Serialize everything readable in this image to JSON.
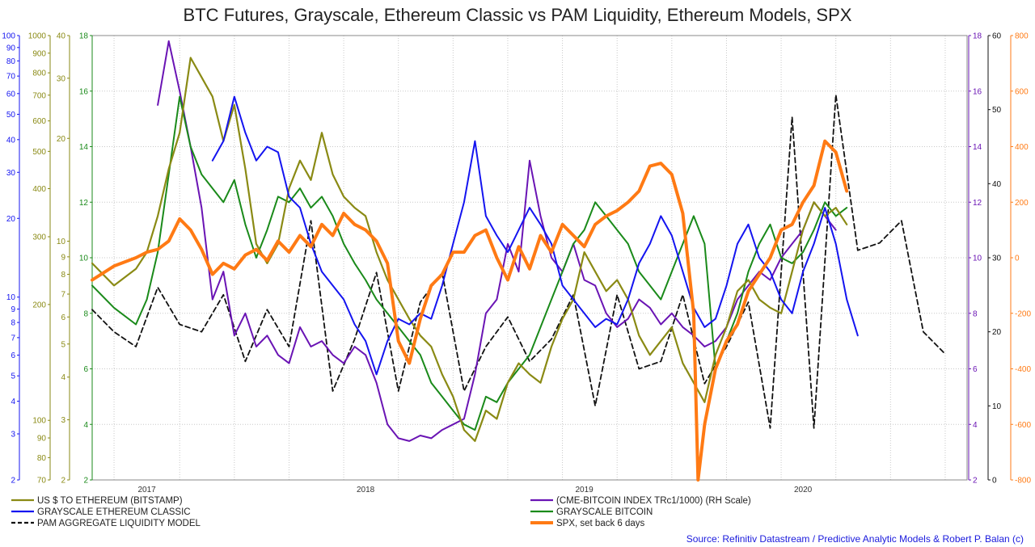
{
  "title": "BTC Futures, Grayscale, Ethereum Classic vs PAM Liquidity, Ethereum Models, SPX",
  "source": "Source: Refinitiv Datastream / Predictive Analytic Models & Robert P. Balan (c)",
  "colors": {
    "eth_usd": "#8a8a14",
    "gs_etc": "#1414f0",
    "pam": "#111111",
    "cme_btc": "#6a14b4",
    "gs_btc": "#1a8a1a",
    "spx": "#ff7a14",
    "grid": "#c8c8c8",
    "source": "#1a1adc"
  },
  "axes": {
    "blue_left": {
      "label_ticks": [
        "100",
        "90",
        "80",
        "70",
        "60",
        "50",
        "40",
        "30",
        "20",
        "10",
        "9",
        "8",
        "7",
        "6",
        "5",
        "4",
        "3",
        "2"
      ],
      "color": "#1414f0",
      "scale": "log",
      "range": [
        2,
        100
      ]
    },
    "olive_left_big": {
      "label_ticks": [
        "1000",
        "900",
        "800",
        "700",
        "600",
        "500",
        "400",
        "300",
        "200",
        "100",
        "90",
        "80",
        "70"
      ],
      "color": "#8a8a14",
      "scale": "log",
      "range": [
        70,
        1000
      ]
    },
    "olive_left_small": {
      "label_ticks": [
        "40",
        "30",
        "20",
        "10",
        "9",
        "8",
        "7",
        "6",
        "5",
        "4",
        "3",
        "2"
      ],
      "color": "#8a8a14",
      "scale": "log",
      "range": [
        2,
        40
      ]
    },
    "green_left": {
      "label_ticks": [
        "18",
        "16",
        "14",
        "12",
        "10",
        "8",
        "6",
        "4",
        "2"
      ],
      "color": "#1a8a1a",
      "scale": "linear",
      "range": [
        2,
        18
      ]
    },
    "purple_right": {
      "label_ticks": [
        "18",
        "16",
        "14",
        "12",
        "10",
        "8",
        "6",
        "4",
        "2"
      ],
      "color": "#6a14b4",
      "scale": "linear",
      "range": [
        2,
        18
      ]
    },
    "black_right": {
      "label_ticks": [
        "60",
        "50",
        "40",
        "30",
        "20",
        "10",
        "0"
      ],
      "color": "#111111",
      "scale": "linear",
      "range": [
        0,
        60
      ]
    },
    "orange_right": {
      "label_ticks": [
        "800",
        "600",
        "400",
        "200",
        "0",
        "-200",
        "-400",
        "-600",
        "-800"
      ],
      "color": "#ff7a14",
      "scale": "linear",
      "range": [
        -800,
        800
      ]
    }
  },
  "x_ticks": [
    "2017",
    "2018",
    "2019",
    "2020"
  ],
  "legend": [
    {
      "label": "US $ TO ETHEREUM (BITSTAMP)",
      "series": "eth_usd",
      "dashed": false
    },
    {
      "label": "GRAYSCALE ETHEREUM CLASSIC",
      "series": "gs_etc",
      "dashed": false
    },
    {
      "label": "PAM AGGREGATE LIQUIDITY MODEL",
      "series": "pam",
      "dashed": true
    },
    {
      "label": "(CME-BITCOIN INDEX TRc1/1000) (RH Scale)",
      "series": "cme_btc",
      "dashed": false
    },
    {
      "label": "GRAYSCALE BITCOIN",
      "series": "gs_btc",
      "dashed": false
    },
    {
      "label": "SPX, set back 6 days",
      "series": "spx",
      "dashed": false
    }
  ],
  "chart_data": {
    "type": "line",
    "title": "BTC Futures, Grayscale, Ethereum Classic vs PAM Liquidity, Ethereum Models, SPX",
    "x_range": [
      2016.75,
      2020.75
    ],
    "x_ticks": [
      2017,
      2018,
      2019,
      2020
    ],
    "grid": true,
    "series": [
      {
        "name": "US $ TO ETHEREUM (BITSTAMP)",
        "key": "eth_usd",
        "axis": "green_left scale (2-18)",
        "x": [
          2016.75,
          2016.85,
          2016.95,
          2017.0,
          2017.05,
          2017.1,
          2017.15,
          2017.2,
          2017.25,
          2017.3,
          2017.35,
          2017.4,
          2017.45,
          2017.5,
          2017.55,
          2017.6,
          2017.65,
          2017.7,
          2017.75,
          2017.8,
          2017.85,
          2017.9,
          2017.95,
          2018.0,
          2018.05,
          2018.1,
          2018.15,
          2018.2,
          2018.25,
          2018.3,
          2018.35,
          2018.4,
          2018.45,
          2018.5,
          2018.55,
          2018.6,
          2018.65,
          2018.7,
          2018.75,
          2018.8,
          2018.85,
          2018.9,
          2018.95,
          2019.0,
          2019.05,
          2019.1,
          2019.15,
          2019.2,
          2019.25,
          2019.3,
          2019.35,
          2019.4,
          2019.45,
          2019.5,
          2019.55,
          2019.6,
          2019.65,
          2019.7,
          2019.75,
          2019.8,
          2019.85,
          2019.9,
          2019.95,
          2020.0,
          2020.05,
          2020.1,
          2020.15,
          2020.2
        ],
        "values": [
          9.8,
          9.0,
          9.6,
          10.2,
          11.5,
          13.2,
          14.5,
          17.2,
          16.5,
          15.8,
          14.2,
          15.5,
          13.2,
          10.5,
          9.8,
          10.5,
          12.5,
          13.5,
          12.8,
          14.5,
          13.0,
          12.2,
          11.8,
          11.5,
          10.2,
          9.2,
          8.5,
          7.8,
          7.2,
          6.8,
          5.8,
          5.0,
          3.8,
          3.4,
          4.5,
          4.2,
          5.5,
          6.2,
          5.8,
          5.5,
          6.8,
          7.8,
          8.5,
          10.2,
          9.5,
          8.8,
          9.2,
          8.5,
          7.2,
          6.5,
          7.0,
          7.5,
          6.2,
          5.5,
          4.8,
          6.5,
          7.5,
          8.8,
          9.2,
          8.5,
          8.2,
          8.0,
          9.5,
          11.0,
          12.0,
          11.5,
          11.8,
          11.2
        ]
      },
      {
        "name": "GRAYSCALE ETHEREUM CLASSIC",
        "key": "gs_etc",
        "axis": "green_left scale (2-18)",
        "x": [
          2017.3,
          2017.35,
          2017.4,
          2017.45,
          2017.5,
          2017.55,
          2017.6,
          2017.65,
          2017.7,
          2017.75,
          2017.8,
          2017.85,
          2017.9,
          2017.95,
          2018.0,
          2018.05,
          2018.1,
          2018.15,
          2018.2,
          2018.25,
          2018.3,
          2018.35,
          2018.4,
          2018.45,
          2018.5,
          2018.55,
          2018.6,
          2018.65,
          2018.7,
          2018.75,
          2018.8,
          2018.85,
          2018.9,
          2018.95,
          2019.0,
          2019.05,
          2019.1,
          2019.15,
          2019.2,
          2019.25,
          2019.3,
          2019.35,
          2019.4,
          2019.45,
          2019.5,
          2019.55,
          2019.6,
          2019.65,
          2019.7,
          2019.75,
          2019.8,
          2019.85,
          2019.9,
          2019.95,
          2020.0,
          2020.05,
          2020.1,
          2020.15,
          2020.2,
          2020.25
        ],
        "values": [
          13.5,
          14.2,
          15.8,
          14.5,
          13.5,
          14.0,
          13.8,
          12.2,
          11.8,
          10.5,
          9.5,
          9.0,
          8.5,
          7.6,
          7.0,
          5.8,
          7.0,
          7.8,
          7.6,
          8.0,
          7.8,
          9.0,
          10.5,
          12.0,
          14.2,
          11.5,
          10.8,
          10.2,
          11.0,
          11.8,
          11.2,
          10.5,
          9.0,
          8.5,
          8.0,
          7.5,
          7.8,
          7.6,
          8.5,
          9.8,
          10.5,
          11.5,
          10.8,
          9.5,
          8.2,
          7.5,
          7.8,
          9.0,
          10.5,
          11.2,
          10.0,
          9.5,
          8.5,
          8.0,
          9.5,
          10.5,
          11.8,
          10.5,
          8.5,
          7.2
        ]
      },
      {
        "name": "PAM AGGREGATE LIQUIDITY MODEL",
        "key": "pam",
        "axis": "black_right scale (0-60)",
        "x": [
          2016.75,
          2016.85,
          2016.95,
          2017.05,
          2017.15,
          2017.25,
          2017.35,
          2017.45,
          2017.55,
          2017.65,
          2017.75,
          2017.85,
          2017.95,
          2018.05,
          2018.15,
          2018.25,
          2018.35,
          2018.45,
          2018.55,
          2018.65,
          2018.75,
          2018.85,
          2018.95,
          2019.05,
          2019.15,
          2019.25,
          2019.35,
          2019.45,
          2019.55,
          2019.65,
          2019.75,
          2019.85,
          2019.95,
          2020.05,
          2020.15,
          2020.25,
          2020.35,
          2020.45,
          2020.55,
          2020.65
        ],
        "values": [
          23,
          20,
          18,
          26,
          21,
          20,
          25,
          16,
          23,
          18,
          35,
          12,
          19,
          28,
          12,
          24,
          28,
          12,
          18,
          22,
          16,
          19,
          25,
          10,
          25,
          15,
          16,
          25,
          13,
          18,
          24,
          7,
          49,
          7,
          52,
          31,
          32,
          35,
          20,
          17
        ]
      },
      {
        "name": "(CME-BITCOIN INDEX TRc1/1000) (RH Scale)",
        "key": "cme_btc",
        "axis": "purple_right scale (2-18)",
        "x": [
          2017.05,
          2017.1,
          2017.15,
          2017.2,
          2017.25,
          2017.3,
          2017.35,
          2017.4,
          2017.45,
          2017.5,
          2017.55,
          2017.6,
          2017.65,
          2017.7,
          2017.75,
          2017.8,
          2017.85,
          2017.9,
          2017.95,
          2018.0,
          2018.05,
          2018.1,
          2018.15,
          2018.2,
          2018.25,
          2018.3,
          2018.35,
          2018.4,
          2018.45,
          2018.5,
          2018.55,
          2018.6,
          2018.65,
          2018.7,
          2018.75,
          2018.8,
          2018.85,
          2018.9,
          2018.95,
          2019.0,
          2019.05,
          2019.1,
          2019.15,
          2019.2,
          2019.25,
          2019.3,
          2019.35,
          2019.4,
          2019.45,
          2019.5,
          2019.55,
          2019.6,
          2019.65,
          2019.7,
          2019.75,
          2019.8,
          2019.85,
          2019.9,
          2019.95,
          2020.0,
          2020.05,
          2020.1,
          2020.15
        ],
        "values": [
          15.5,
          17.8,
          16.0,
          14.0,
          11.8,
          8.5,
          9.5,
          7.2,
          8.0,
          6.8,
          7.2,
          6.5,
          6.2,
          7.5,
          6.8,
          7.0,
          6.5,
          6.2,
          6.8,
          6.5,
          5.5,
          4.0,
          3.5,
          3.4,
          3.6,
          3.5,
          3.8,
          4.0,
          4.2,
          5.8,
          8.0,
          8.5,
          10.5,
          9.5,
          13.5,
          11.5,
          10.0,
          9.5,
          10.5,
          9.2,
          9.0,
          8.0,
          7.5,
          7.8,
          8.5,
          8.2,
          7.6,
          8.0,
          7.5,
          7.2,
          6.8,
          7.0,
          7.5,
          8.5,
          9.0,
          9.5,
          9.2,
          10.0,
          10.5,
          11.0,
          12.0,
          11.5,
          11.0
        ]
      },
      {
        "name": "GRAYSCALE BITCOIN",
        "key": "gs_btc",
        "axis": "green_left scale (2-18)",
        "x": [
          2016.75,
          2016.85,
          2016.95,
          2017.0,
          2017.05,
          2017.1,
          2017.15,
          2017.2,
          2017.25,
          2017.3,
          2017.35,
          2017.4,
          2017.45,
          2017.5,
          2017.55,
          2017.6,
          2017.65,
          2017.7,
          2017.75,
          2017.8,
          2017.85,
          2017.9,
          2017.95,
          2018.0,
          2018.05,
          2018.1,
          2018.15,
          2018.2,
          2018.25,
          2018.3,
          2018.35,
          2018.4,
          2018.45,
          2018.5,
          2018.55,
          2018.6,
          2018.65,
          2018.7,
          2018.75,
          2018.8,
          2018.85,
          2018.9,
          2018.95,
          2019.0,
          2019.05,
          2019.1,
          2019.15,
          2019.2,
          2019.25,
          2019.3,
          2019.35,
          2019.4,
          2019.45,
          2019.5,
          2019.55,
          2019.6,
          2019.65,
          2019.7,
          2019.75,
          2019.8,
          2019.85,
          2019.9,
          2019.95,
          2020.0,
          2020.05,
          2020.1,
          2020.15,
          2020.2
        ],
        "values": [
          9.0,
          8.2,
          7.6,
          8.5,
          10.2,
          13.0,
          15.8,
          14.0,
          13.0,
          12.5,
          12.0,
          12.8,
          11.2,
          10.0,
          11.0,
          12.2,
          12.0,
          12.5,
          11.8,
          12.2,
          11.5,
          10.5,
          9.8,
          9.2,
          8.5,
          8.0,
          7.5,
          7.0,
          6.5,
          5.5,
          5.0,
          4.5,
          4.0,
          3.8,
          5.0,
          4.8,
          5.5,
          6.0,
          6.5,
          7.5,
          8.5,
          9.5,
          10.5,
          11.0,
          12.0,
          11.5,
          11.0,
          10.5,
          9.5,
          9.0,
          8.5,
          9.5,
          10.5,
          11.5,
          10.5,
          6.0,
          7.0,
          8.0,
          9.5,
          10.5,
          11.2,
          10.0,
          9.8,
          10.2,
          11.0,
          12.0,
          11.5,
          11.8
        ]
      },
      {
        "name": "SPX, set back 6 days",
        "key": "spx",
        "axis": "orange_right scale (-800 to 800)",
        "x": [
          2016.75,
          2016.85,
          2016.95,
          2017.0,
          2017.05,
          2017.1,
          2017.15,
          2017.2,
          2017.25,
          2017.3,
          2017.35,
          2017.4,
          2017.45,
          2017.5,
          2017.55,
          2017.6,
          2017.65,
          2017.7,
          2017.75,
          2017.8,
          2017.85,
          2017.9,
          2017.95,
          2018.0,
          2018.05,
          2018.1,
          2018.15,
          2018.2,
          2018.25,
          2018.3,
          2018.35,
          2018.4,
          2018.45,
          2018.5,
          2018.55,
          2018.6,
          2018.65,
          2018.7,
          2018.75,
          2018.8,
          2018.85,
          2018.9,
          2018.95,
          2019.0,
          2019.05,
          2019.1,
          2019.15,
          2019.2,
          2019.25,
          2019.3,
          2019.35,
          2019.4,
          2019.45,
          2019.5,
          2019.52,
          2019.55,
          2019.6,
          2019.65,
          2019.7,
          2019.75,
          2019.8,
          2019.85,
          2019.9,
          2019.95,
          2020.0,
          2020.05,
          2020.1,
          2020.15,
          2020.2
        ],
        "values": [
          -80,
          -30,
          0,
          20,
          30,
          60,
          140,
          100,
          30,
          -60,
          -20,
          -40,
          10,
          30,
          -10,
          60,
          20,
          80,
          40,
          120,
          80,
          160,
          120,
          100,
          60,
          -20,
          -300,
          -380,
          -220,
          -100,
          -60,
          20,
          20,
          80,
          100,
          0,
          -80,
          40,
          -40,
          80,
          20,
          120,
          80,
          40,
          120,
          150,
          170,
          200,
          240,
          330,
          340,
          300,
          160,
          -200,
          -800,
          -600,
          -400,
          -300,
          -240,
          -120,
          -60,
          0,
          100,
          120,
          200,
          260,
          420,
          380,
          240
        ]
      }
    ]
  }
}
